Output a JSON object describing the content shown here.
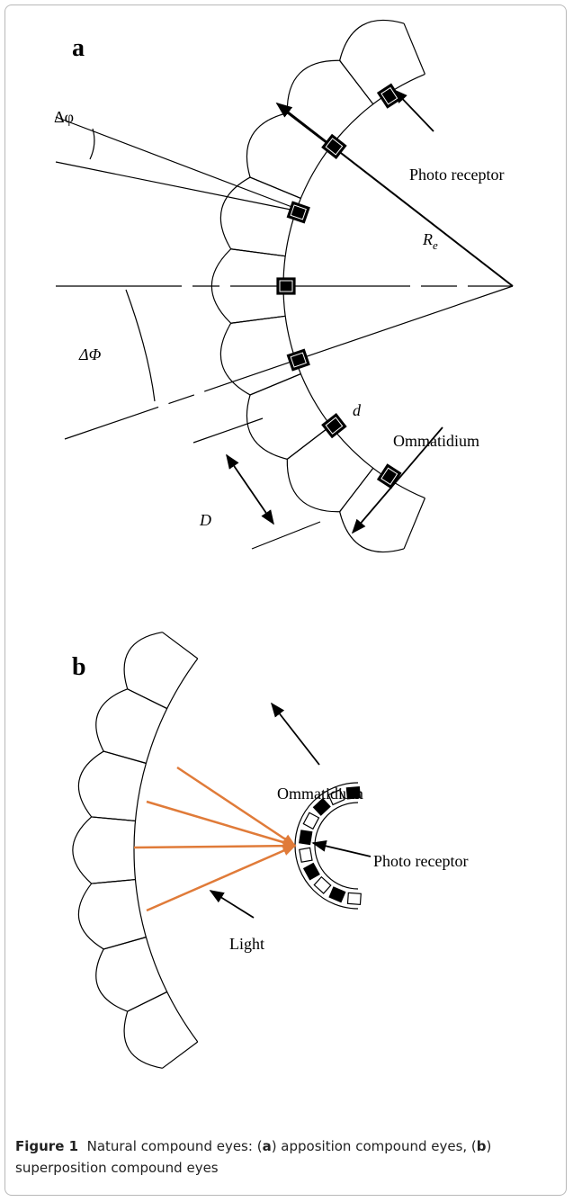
{
  "panel_a": {
    "label": "a",
    "delta_phi_small": "Δφ",
    "radius": {
      "symbol": "R",
      "subscript": "e"
    },
    "photo_receptor": "Photo receptor",
    "delta_phi_large": "ΔΦ",
    "d": "d",
    "ommatidium": "Ommatidium",
    "D": "D"
  },
  "panel_b": {
    "label": "b",
    "ommatidium": "Ommatidium",
    "photo_receptor": "Photo receptor",
    "light": "Light"
  },
  "caption": {
    "label": "Figure 1",
    "text_1": "Natural compound eyes: (",
    "panel_a": "a",
    "text_2": ") apposition compound eyes, (",
    "panel_b": "b",
    "text_3": ") superposition compound eyes"
  }
}
